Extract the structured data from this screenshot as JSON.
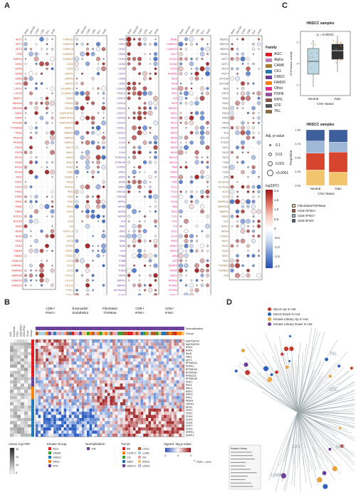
{
  "panels": {
    "A": "A",
    "B": "B",
    "C": "C",
    "D": "D"
  },
  "colors": {
    "AGC": "#e31a1c",
    "Alpha": "#c77cbb",
    "CAMK": "#b07a2e",
    "CK1": "#1f78b4",
    "CMGC": "#6a3d9a",
    "FAM20": "#ff7f00",
    "Other": "#e7298a",
    "PDHK": "#984ea3",
    "RIPK": "#8c564b",
    "STE": "#555555",
    "TKL": "#8a6d3b",
    "pos": "#c0392b",
    "neg": "#2c5fb8"
  },
  "panelA": {
    "col1": [
      "AKT1",
      "AKT2",
      "AKT3",
      "CRIK",
      "DMPK1",
      "GRK2",
      "GRK3",
      "GRK5",
      "GRK6",
      "GRK7",
      "LATS1",
      "LATS2",
      "MAST1",
      "MRCKA",
      "MRCKB",
      "NDR1",
      "NDR2",
      "P70S6K",
      "P70S6KB",
      "PDK1",
      "PKACA",
      "PKACB",
      "PKCA",
      "PKCB",
      "PKCD",
      "PKCE",
      "PKCG",
      "PKCH",
      "PKCI",
      "PKCT",
      "PKCZ",
      "PKG1",
      "PKG2",
      "PKN1",
      "PKN2",
      "PRKX",
      "ROCK1",
      "ROCK2",
      "RSK2",
      "RSK3",
      "RSK4",
      "SGK1",
      "SGK3",
      "YANK2",
      "YANK3",
      "CAMK1A",
      "KMPHK1",
      "AMPKA1",
      "AMPKA2",
      "CAMK1D",
      "CAMK1G"
    ],
    "col2": [
      "CAMK1D",
      "CAMK2A",
      "CAMK2B",
      "CAMK2D",
      "CAMK2G",
      "CHK1",
      "CHK2",
      "DAPK1",
      "DAPK2",
      "DAPK3",
      "DCAMKL1",
      "DCAMKL2",
      "DMAK",
      "DRAK1",
      "DRAK2",
      "MAPKAPK2",
      "MAPKAPK3",
      "MAPKAPK5",
      "MARK1",
      "MARK2",
      "MARK3",
      "MARK4",
      "MELK",
      "MNK1",
      "MNK2",
      "MSK1",
      "MSK2",
      "NIM1",
      "NUAK1",
      "PASK",
      "PHKG1",
      "PIM1",
      "PIM2",
      "PIM3",
      "PKD1",
      "PKD2",
      "QIK",
      "QSK",
      "SIK",
      "SKMLCK",
      "SNRK",
      "SSTK",
      "STK33",
      "TSSK1",
      "TSSK2",
      "CK1A",
      "CK1D",
      "CK1E",
      "CK1G1",
      "CK1G2",
      "CK1G3",
      "TTBK1",
      "TTBK2",
      "VRK2"
    ],
    "col3": [
      "VRK1",
      "CDK1",
      "CDK2",
      "CDK3",
      "CDK4",
      "CDK5",
      "CDK6",
      "CDK7",
      "CDK8",
      "CDK9",
      "CDK10",
      "CDK12",
      "CDK13",
      "CDK14",
      "CDK16",
      "CDK17",
      "CDK18",
      "CDK19",
      "CDKL1",
      "CDKL5",
      "CLK1",
      "CLK2",
      "CLK3",
      "CLK4",
      "DYRK1A",
      "DYRK1B",
      "DYRK2",
      "ERK1",
      "ERK2",
      "ERK5",
      "ERK7",
      "GSK3A",
      "GSK3B",
      "HIPK1",
      "HIPK2",
      "HIPK3",
      "HIPK4",
      "ICK",
      "JNK1",
      "JNK2",
      "JNK3",
      "MAK",
      "MOK",
      "NLK",
      "P38A",
      "P38B",
      "P38D",
      "P38G",
      "PRP4",
      "SRPK1",
      "SRPK2",
      "ALPHAK3",
      "AURA",
      "AURB",
      "AURC"
    ],
    "col4": [
      "BUB1",
      "CAMKK1",
      "CAMKK2",
      "CDC7",
      "CK2A1",
      "CK2A2",
      "GCN2",
      "HASPIN",
      "IKKA",
      "IKKB",
      "IKKE",
      "IRE1",
      "KIS",
      "MOS",
      "MPSK1",
      "NEK1",
      "NEK2",
      "NEK3",
      "NEK4",
      "NEK5",
      "NEK6",
      "NEK7",
      "NEK8",
      "NEK9",
      "NEK10",
      "NEK11",
      "PBK",
      "PERK",
      "PINK1",
      "PKR",
      "PLK1",
      "PLK2",
      "PLK3",
      "PLK4",
      "SBK",
      "TBK1",
      "TLK1",
      "TLK2",
      "TTK",
      "ULK1",
      "ULK2",
      "VRK3",
      "WNK1",
      "WNK4",
      "ATM",
      "ATR",
      "DNAPK",
      "MTOR",
      "SMG1",
      "BCKDK",
      "PDHK1",
      "PDHK4",
      "RIPK1",
      "RIPK2",
      "RIPK3"
    ],
    "col5": [
      "MEKK1",
      "MEKK2",
      "MEKK3",
      "MINK1",
      "MST1",
      "MST2",
      "MST3",
      "MST4",
      "MYO3A",
      "MYO3B",
      "NEK",
      "OSR1",
      "PAK1",
      "PAK2",
      "PAK3",
      "PAK4",
      "PAK5",
      "PAK6",
      "PRPK",
      "SLK",
      "STLK3",
      "STE20",
      "TAO1",
      "TAO2",
      "TAO3",
      "TNIK",
      "YSK1",
      "YSK4",
      "ZAK",
      "ACVR2A",
      "ACVR2B",
      "ALK2",
      "ALK4",
      "BMPR1A",
      "BMPR1B",
      "BMPR2",
      "BRAF",
      "DLK",
      "IRAK1",
      "IRAK4",
      "LRRK2",
      "MLK1",
      "MLK2",
      "MLK3",
      "RAF1",
      "TAK1",
      "TGFBR1",
      "TGFBR2",
      "ZAK"
    ],
    "family_title": "Family",
    "family": [
      "AGC",
      "Alpha",
      "CAMK",
      "CK1",
      "CMGC",
      "FAM20",
      "Other",
      "PDHK",
      "RIPK",
      "STE",
      "TKL"
    ],
    "pval_title": "Adj. p-value",
    "pval": [
      "0.1",
      "0.01",
      "0.001",
      "<0.0001"
    ],
    "fc_title": "log2(FF)",
    "fc_ticks": [
      "2.0",
      "1.5",
      "1.0",
      "0.5",
      "0",
      "-0.5",
      "-1.0",
      "-1.5",
      "-2.0"
    ]
  },
  "panelB": {
    "groups": [
      "CD8+/ IFNG+",
      "Eosinophil/ Endothelial",
      "Fibroblast/ TGFBeta",
      "CD8-/ IFNG+",
      "CD8-/ IFNG-"
    ],
    "row_labels": [
      "Normalization",
      "Tumor"
    ],
    "genes": [
      "MAPKAPK2",
      "MAPKAPK3",
      "RSK3",
      "RSK4",
      "IKKB",
      "TBK1",
      "AKT1",
      "RPS6KA1",
      "PDPK1",
      "RPS6KA3",
      "RPS6KB1",
      "PRKACA",
      "RPS6KA6",
      "SGK1",
      "PAK1",
      "PAK4",
      "MSK1",
      "MSK2",
      "PAK2",
      "IRAK4",
      "LRRK2",
      "NEK2",
      "CDK1",
      "CDK2",
      "CDK4",
      "CDK5",
      "CDK6",
      "CDK7",
      "CDK9",
      "SRPK1",
      "SRPK2"
    ],
    "legend_anova_title": "Anova -log FDR",
    "legend_anova_ticks": [
      "30",
      "20",
      "10",
      "0"
    ],
    "kinase_group_title": "Kinase Group",
    "kinase_groups": [
      "AGC",
      "CAMK",
      "CMGC",
      "Other",
      "STE"
    ],
    "normalization_title": "Normalization",
    "normalization": [
      "T/N"
    ],
    "tumor_title": "Tumor",
    "tumors": [
      "BR",
      "CCRCC",
      "CO",
      "GBM",
      "HNSCC",
      "LSCC",
      "LUAD",
      "OV",
      "PDAC",
      "UCEC"
    ],
    "signed_title": "Signed -log p-value",
    "signed_ticks": [
      "-2",
      "0",
      "2"
    ],
    "fdr_note": "FDR < 10%",
    "left_ticks": [
      "CD8",
      "Eos/Endo",
      "Fibro",
      "CD8-IFNG+",
      "CD8-IFNG-",
      "Score",
      "Group"
    ]
  },
  "panelC": {
    "box_title": "HNSCC samples",
    "pvalue": "p = 0.00021",
    "box_ylabel": "ATR kinase activity",
    "box_xlabel": "CNV Status",
    "box_categories": [
      "Neutral",
      "Gain"
    ],
    "bar_title": "HNSCC samples",
    "bar_ylabel": "Proportion",
    "bar_xlabel": "CNV Status",
    "bar_yticks": [
      "0.00",
      "0.25",
      "0.50",
      "0.75",
      "1.00"
    ],
    "legend": [
      "Fibroblast/TGFBeta",
      "CD8+/IFNG+",
      "CD8-/IFNG+",
      "CD8-/IFNG-"
    ]
  },
  "chart_data": [
    {
      "type": "box",
      "title": "HNSCC samples",
      "xlabel": "CNV Status",
      "ylabel": "ATR kinase activity",
      "categories": [
        "Neutral",
        "Gain"
      ],
      "quartiles": [
        [
          -0.5,
          0.1,
          0.7
        ],
        [
          0.2,
          0.6,
          0.9
        ]
      ],
      "annotation": "p = 0.00021"
    },
    {
      "type": "bar",
      "title": "HNSCC samples",
      "xlabel": "CNV Status",
      "ylabel": "Proportion",
      "categories": [
        "Neutral",
        "Gain"
      ],
      "ylim": [
        0,
        1
      ],
      "series": [
        {
          "name": "Fibroblast/TGFBeta",
          "values": [
            0.28,
            0.24
          ]
        },
        {
          "name": "CD8+/IFNG+",
          "values": [
            0.3,
            0.36
          ]
        },
        {
          "name": "CD8-/IFNG+",
          "values": [
            0.22,
            0.18
          ]
        },
        {
          "name": "CD8-/IFNG-",
          "values": [
            0.2,
            0.22
          ]
        }
      ],
      "colors": [
        "#f2c46d",
        "#d7452f",
        "#9fb8d8",
        "#3f5f9c"
      ]
    }
  ],
  "panelD": {
    "legend": [
      "KEA3 Up in Hot",
      "KEA3 Down in Hot",
      "Kinase Library Up in Hot",
      "Kinase Library Down in Hot"
    ],
    "legend_colors": [
      "#c0392b",
      "#2c5fb8",
      "#e8a33a",
      "#6a3d9a"
    ],
    "group_labels": [
      "TKL",
      "STE",
      "CK1",
      "AGC",
      "CAMK"
    ],
    "table_title": "Kinase Library"
  }
}
